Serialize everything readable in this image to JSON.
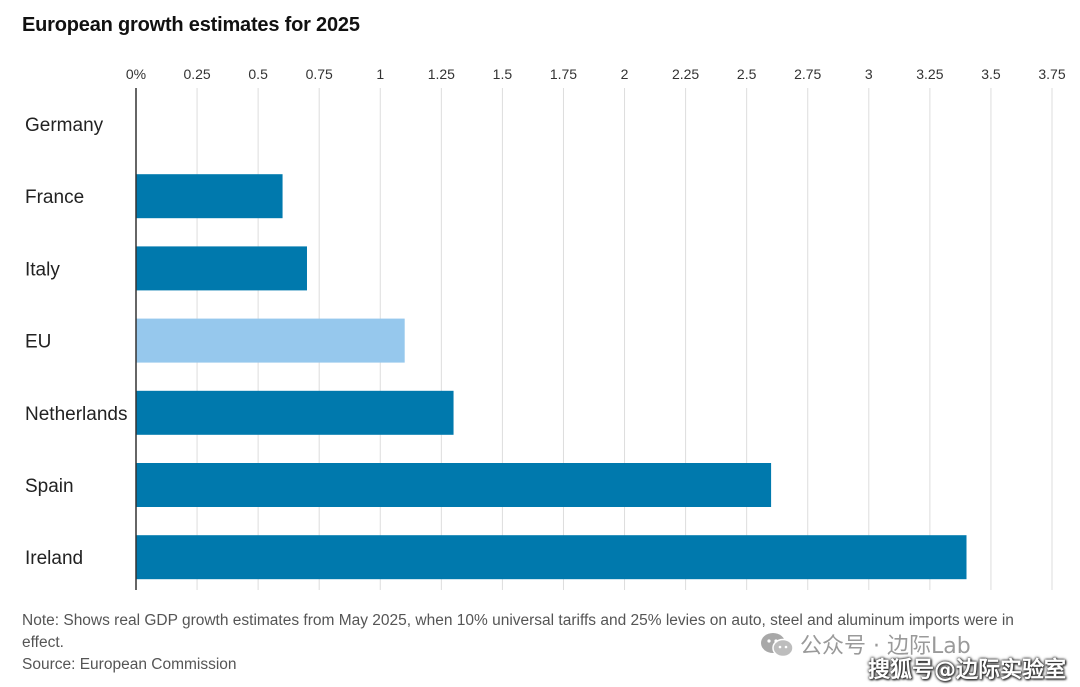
{
  "chart_data": {
    "type": "bar",
    "orientation": "horizontal",
    "title": "European growth estimates for 2025",
    "categories": [
      "Germany",
      "France",
      "Italy",
      "EU",
      "Netherlands",
      "Spain",
      "Ireland"
    ],
    "values": [
      0.0,
      0.6,
      0.7,
      1.1,
      1.3,
      2.6,
      3.4
    ],
    "highlight": "EU",
    "x_ticks": [
      "0%",
      "0.25",
      "0.5",
      "0.75",
      "1",
      "1.25",
      "1.5",
      "1.75",
      "2",
      "2.25",
      "2.5",
      "2.75",
      "3",
      "3.25",
      "3.5",
      "3.75"
    ],
    "xlim": [
      0,
      3.75
    ],
    "xaxis_position": "top",
    "grid": true,
    "colors": {
      "bar": "#0079ad",
      "highlight": "#96c8ed",
      "grid": "#dddddd",
      "axis": "#333333"
    }
  },
  "note": "Note: Shows real GDP growth estimates from May 2025, when 10% universal tariffs and 25% levies on auto, steel and aluminum imports were in effect.",
  "source": "Source: European Commission",
  "watermark": {
    "line1": "公众号 · 边际Lab",
    "line2": "搜狐号@边际实验室",
    "icon": "wechat-icon"
  }
}
